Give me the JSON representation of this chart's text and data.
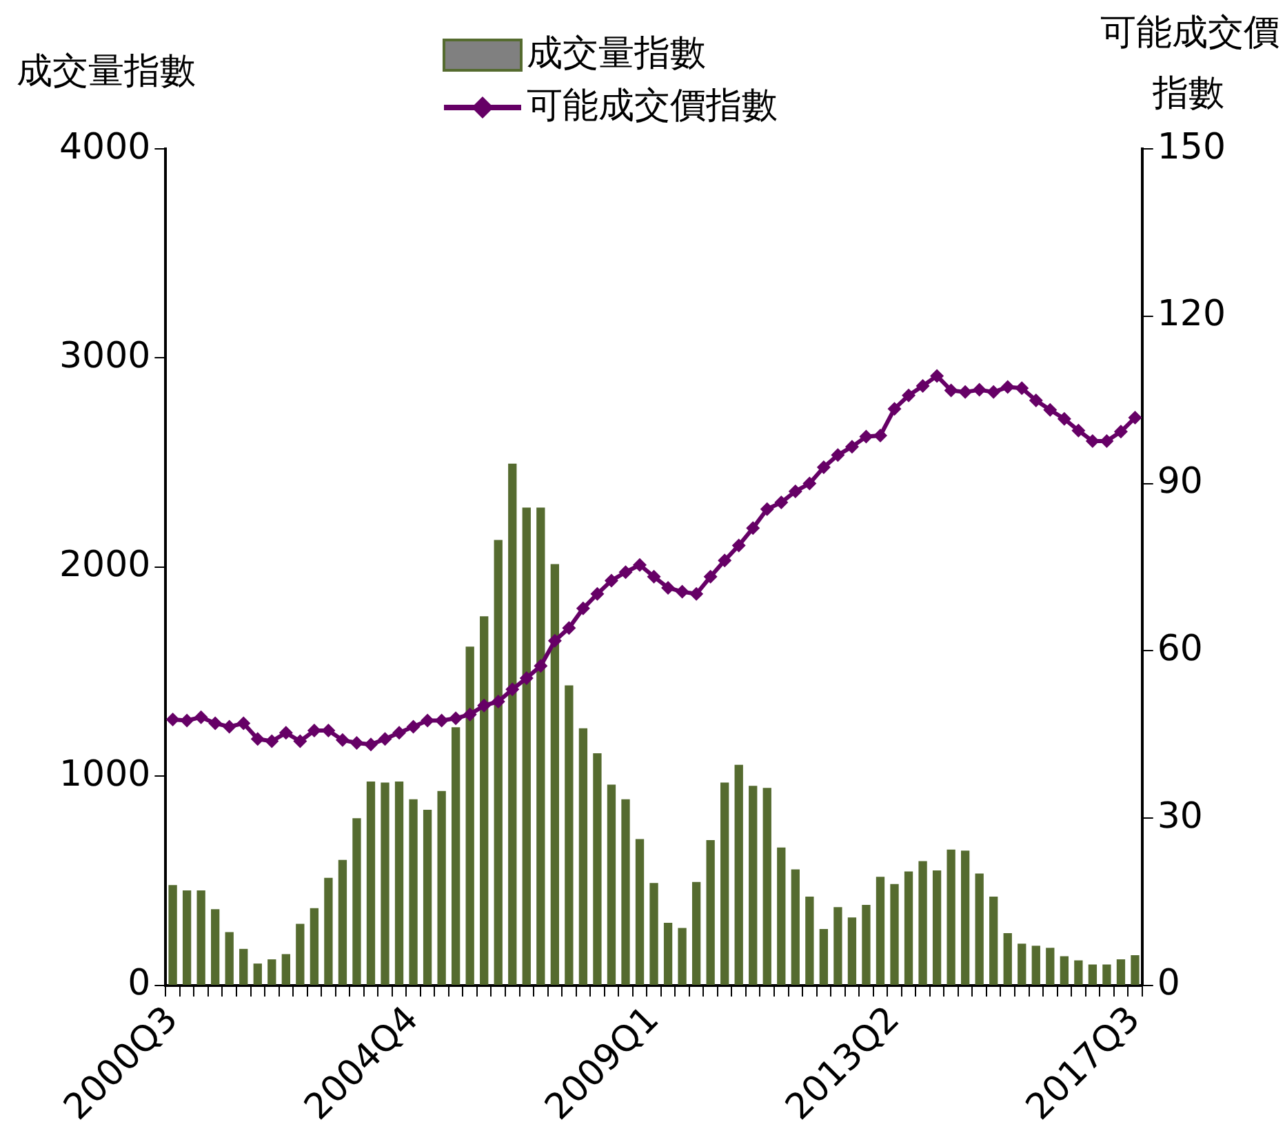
{
  "chart_data": {
    "type": "bar",
    "ylabel": "成交量指數",
    "y2label": "可能成交價指數",
    "categories": [
      "2000Q3",
      null,
      null,
      null,
      null,
      null,
      null,
      null,
      null,
      null,
      null,
      null,
      null,
      null,
      null,
      null,
      null,
      "2004Q4",
      null,
      null,
      null,
      null,
      null,
      null,
      null,
      null,
      null,
      null,
      null,
      null,
      null,
      null,
      null,
      null,
      "2009Q1",
      null,
      null,
      null,
      null,
      null,
      null,
      null,
      null,
      null,
      null,
      null,
      null,
      null,
      null,
      null,
      null,
      "2013Q2",
      null,
      null,
      null,
      null,
      null,
      null,
      null,
      null,
      null,
      null,
      null,
      null,
      null,
      null,
      null,
      null,
      "2017Q3"
    ],
    "series": [
      {
        "name": "成交量指數",
        "type": "bar",
        "color": "#556b2f",
        "values": [
          480,
          455,
          455,
          365,
          255,
          175,
          105,
          125,
          150,
          295,
          370,
          515,
          600,
          800,
          975,
          970,
          975,
          890,
          840,
          930,
          1235,
          1620,
          1765,
          2130,
          2495,
          2285,
          2285,
          2015,
          1435,
          1230,
          1110,
          960,
          890,
          700,
          490,
          300,
          275,
          495,
          695,
          970,
          1055,
          955,
          945,
          660,
          555,
          425,
          270,
          375,
          325,
          385,
          520,
          485,
          545,
          595,
          550,
          650,
          645,
          535,
          425,
          250,
          200,
          190,
          180,
          140,
          120,
          100,
          100,
          125,
          145
        ]
      },
      {
        "name": "可能成交價指數",
        "type": "line",
        "axis": "y2",
        "color": "#660066",
        "values": [
          47.7,
          47.5,
          48.1,
          47.0,
          46.4,
          47.0,
          44.2,
          43.8,
          45.3,
          43.8,
          45.7,
          45.7,
          44.0,
          43.5,
          43.2,
          44.2,
          45.3,
          46.4,
          47.5,
          47.5,
          47.9,
          48.6,
          50.2,
          50.9,
          53.1,
          55.1,
          57.3,
          61.8,
          64.1,
          67.6,
          70.2,
          72.6,
          74.1,
          75.4,
          73.3,
          71.3,
          70.6,
          70.2,
          73.3,
          76.2,
          78.9,
          82.0,
          85.4,
          86.6,
          88.6,
          90.0,
          92.9,
          95.1,
          96.6,
          98.4,
          98.6,
          103.4,
          105.8,
          107.5,
          109.3,
          106.7,
          106.4,
          106.8,
          106.4,
          107.3,
          107.1,
          104.9,
          103.2,
          101.6,
          99.5,
          97.6,
          97.6,
          99.3,
          101.8
        ]
      }
    ],
    "ylim": [
      0,
      4000
    ],
    "yticks": [
      0,
      1000,
      2000,
      3000,
      4000
    ],
    "y2lim": [
      0,
      150
    ],
    "y2ticks": [
      0,
      30,
      60,
      90,
      120,
      150
    ],
    "grid": false,
    "legend": "top",
    "marker": "diamond",
    "line_style": "solid"
  }
}
